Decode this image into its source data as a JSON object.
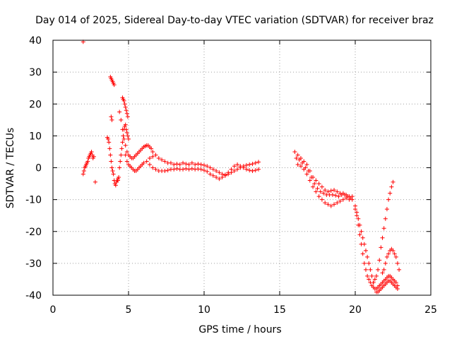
{
  "chart_data": {
    "type": "scatter",
    "title": "Day 014 of 2025, Sidereal Day-to-day VTEC variation (SDTVAR) for receiver braz",
    "xlabel": "GPS time / hours",
    "ylabel": "SDTVAR / TECUs",
    "xlim": [
      0,
      25
    ],
    "ylim": [
      -40,
      40
    ],
    "xticks": [
      0,
      5,
      10,
      15,
      20,
      25
    ],
    "yticks": [
      -40,
      -30,
      -20,
      -10,
      0,
      10,
      20,
      30,
      40
    ],
    "xtick_labels": [
      "0",
      "5",
      "10",
      "15",
      "20",
      "25"
    ],
    "ytick_labels": [
      "-40",
      "-30",
      "-20",
      "-10",
      "0",
      "10",
      "20",
      "30",
      "40"
    ],
    "grid": true,
    "marker": "+",
    "color": "#ff0000",
    "series": [
      {
        "name": "SDTVAR",
        "x": [
          2.0,
          2.05,
          2.1,
          2.15,
          2.2,
          2.25,
          2.3,
          2.35,
          2.4,
          2.45,
          2.5,
          2.55,
          2.6,
          2.65,
          2.7,
          2.8,
          2.0,
          3.6,
          3.65,
          3.7,
          3.75,
          3.8,
          3.85,
          3.9,
          3.95,
          4.0,
          4.05,
          4.1,
          4.15,
          4.2,
          4.25,
          4.3,
          3.8,
          3.85,
          3.9,
          3.95,
          4.0,
          4.05,
          3.85,
          3.9,
          4.3,
          4.35,
          4.4,
          4.45,
          4.5,
          4.55,
          4.6,
          4.65,
          4.7,
          4.75,
          4.8,
          4.85,
          4.9,
          4.95,
          5.0,
          4.6,
          4.65,
          4.7,
          4.75,
          4.8,
          4.85,
          4.9,
          4.95,
          4.4,
          4.5,
          4.6,
          4.7,
          4.8,
          4.9,
          5.0,
          5.1,
          5.2,
          5.3,
          5.4,
          5.5,
          5.6,
          5.7,
          5.8,
          5.9,
          6.0,
          6.1,
          6.2,
          6.3,
          6.4,
          6.5,
          4.8,
          4.9,
          5.0,
          5.1,
          5.2,
          5.3,
          5.4,
          5.5,
          5.6,
          5.7,
          5.8,
          5.9,
          6.0,
          6.2,
          6.4,
          6.6,
          6.6,
          6.8,
          7.0,
          7.2,
          7.4,
          7.6,
          7.8,
          8.0,
          8.2,
          8.4,
          8.6,
          8.8,
          9.0,
          9.2,
          9.4,
          9.6,
          9.8,
          10.0,
          6.4,
          6.6,
          6.8,
          7.0,
          7.2,
          7.4,
          7.6,
          7.8,
          8.0,
          8.2,
          8.4,
          8.6,
          8.8,
          9.0,
          9.2,
          9.4,
          9.6,
          9.8,
          10.0,
          10.2,
          10.4,
          10.6,
          10.8,
          11.0,
          11.2,
          11.4,
          11.6,
          11.8,
          12.0,
          12.2,
          12.4,
          12.6,
          12.8,
          13.0,
          13.2,
          13.4,
          13.6,
          10.2,
          10.4,
          10.6,
          10.8,
          11.0,
          11.2,
          11.4,
          11.6,
          11.8,
          12.0,
          12.2,
          12.4,
          12.6,
          12.8,
          13.0,
          13.2,
          13.4,
          13.6,
          16.0,
          16.2,
          16.4,
          16.6,
          16.8,
          17.0,
          17.2,
          17.4,
          17.6,
          17.8,
          18.0,
          18.2,
          18.4,
          18.6,
          18.8,
          19.0,
          19.2,
          19.4,
          19.6,
          19.8,
          16.1,
          16.3,
          16.5,
          16.7,
          16.9,
          17.1,
          17.3,
          17.5,
          17.7,
          17.9,
          18.1,
          18.3,
          18.5,
          18.7,
          18.9,
          19.1,
          19.3,
          19.5,
          19.7,
          16.2,
          16.4,
          16.6,
          16.8,
          17.0,
          17.2,
          17.4,
          17.6,
          17.8,
          18.0,
          18.2,
          18.4,
          18.6,
          18.8,
          19.0,
          19.2,
          19.4,
          19.6,
          19.8,
          20.0,
          20.1,
          20.2,
          20.3,
          20.4,
          20.5,
          20.6,
          20.7,
          20.8,
          20.9,
          21.0,
          21.1,
          21.2,
          21.3,
          21.4,
          20.0,
          20.1,
          20.2,
          20.3,
          20.4,
          20.5,
          20.6,
          20.7,
          20.8,
          20.9,
          21.0,
          21.1,
          21.2,
          21.4,
          21.5,
          21.6,
          21.7,
          21.8,
          21.9,
          22.0,
          22.1,
          22.2,
          22.3,
          22.4,
          22.5,
          22.6,
          22.7,
          22.8,
          21.2,
          21.3,
          21.4,
          21.5,
          21.6,
          21.7,
          21.8,
          21.9,
          22.0,
          22.1,
          22.2,
          22.3,
          22.4,
          22.5,
          21.5,
          21.6,
          21.7,
          21.8,
          21.9,
          22.0,
          22.1,
          22.2,
          22.3,
          22.4,
          22.5,
          22.6,
          22.7,
          22.8,
          21.8,
          21.9,
          22.0,
          22.1,
          22.2,
          22.3,
          22.4,
          22.5,
          22.6,
          22.7,
          22.8,
          22.9
        ],
        "y": [
          -2,
          -1,
          0,
          0.5,
          1,
          1.5,
          2,
          3,
          3.5,
          4,
          4.5,
          5,
          4,
          3,
          3.5,
          -4.5,
          39.5,
          9.5,
          9,
          8,
          6,
          4,
          2,
          0,
          -1,
          -2,
          -4,
          -5,
          -5.5,
          -4.5,
          -4,
          -3.5,
          28.5,
          28,
          27.5,
          27,
          26.5,
          26,
          16,
          15,
          -4,
          -3,
          0,
          2,
          4,
          6,
          8,
          10,
          12,
          13,
          13.5,
          12,
          11,
          10,
          9,
          22,
          21.5,
          21,
          20,
          19,
          18,
          17,
          16,
          17.5,
          15,
          12,
          9,
          7,
          5,
          4,
          3.5,
          3,
          3,
          3.5,
          4,
          4.5,
          5,
          5.5,
          6,
          6.5,
          6.8,
          7,
          7,
          6.5,
          6,
          4,
          2,
          1,
          0.5,
          0,
          -0.5,
          -1,
          -1,
          -0.5,
          0,
          0.5,
          1,
          1.5,
          2,
          3,
          3.5,
          5,
          4,
          3,
          2.5,
          2,
          1.5,
          1.5,
          1,
          1.2,
          1,
          1.5,
          1.2,
          1,
          1.5,
          1,
          1.2,
          1,
          0.8,
          1,
          0,
          -0.5,
          -1,
          -1,
          -1,
          -0.8,
          -0.5,
          -0.5,
          -0.3,
          -0.5,
          -0.5,
          -0.3,
          -0.5,
          -0.3,
          -0.5,
          -0.4,
          -0.5,
          -0.8,
          0.5,
          0,
          -0.5,
          -1,
          -1.5,
          -2,
          -2.2,
          -2,
          -1.5,
          -1,
          -0.5,
          0,
          0.5,
          0.8,
          1,
          1.2,
          1.5,
          1.8,
          -1.2,
          -2,
          -2.5,
          -3,
          -3.5,
          -3,
          -2.5,
          -1.5,
          -0.5,
          0.5,
          1,
          0.5,
          0,
          -0.5,
          -0.8,
          -1,
          -0.8,
          -0.5,
          5,
          4,
          3,
          2,
          1,
          -1,
          -3,
          -4,
          -5,
          -6,
          -7,
          -7.5,
          -7.2,
          -7,
          -7.5,
          -8,
          -8,
          -8.5,
          -9,
          -9,
          3,
          2.5,
          1.5,
          0,
          -1,
          -3,
          -5,
          -6.5,
          -7.5,
          -8,
          -8.5,
          -8.5,
          -8.5,
          -8.7,
          -9,
          -8.5,
          -8.5,
          -9,
          -9.5,
          1,
          0.5,
          -0.5,
          -2,
          -4,
          -6,
          -7.5,
          -9,
          -10,
          -11,
          -11.5,
          -12,
          -11.5,
          -11,
          -10.5,
          -10,
          -9.5,
          -10,
          -10,
          -12,
          -14,
          -16,
          -18,
          -20,
          -22,
          -24,
          -26,
          -28,
          -30,
          -32,
          -34,
          -36,
          -38,
          -39,
          -13,
          -15,
          -18,
          -21,
          -24,
          -27,
          -30,
          -32,
          -34,
          -35,
          -36,
          -37,
          -37.5,
          -38,
          -37.5,
          -37,
          -36.5,
          -36,
          -35.5,
          -35,
          -34.5,
          -34,
          -34,
          -34.5,
          -35,
          -35.5,
          -36,
          -37,
          -36,
          -35,
          -34,
          -32,
          -29,
          -25,
          -22,
          -19,
          -16,
          -13,
          -10,
          -8,
          -6,
          -4.5,
          -39,
          -38.5,
          -38,
          -37.5,
          -37,
          -36.5,
          -36,
          -35.5,
          -35.5,
          -36,
          -36.5,
          -37,
          -37.5,
          -38,
          -33,
          -32,
          -30,
          -28,
          -27,
          -26,
          -25.5,
          -26,
          -27,
          -28,
          -30,
          -32
        ]
      }
    ]
  }
}
